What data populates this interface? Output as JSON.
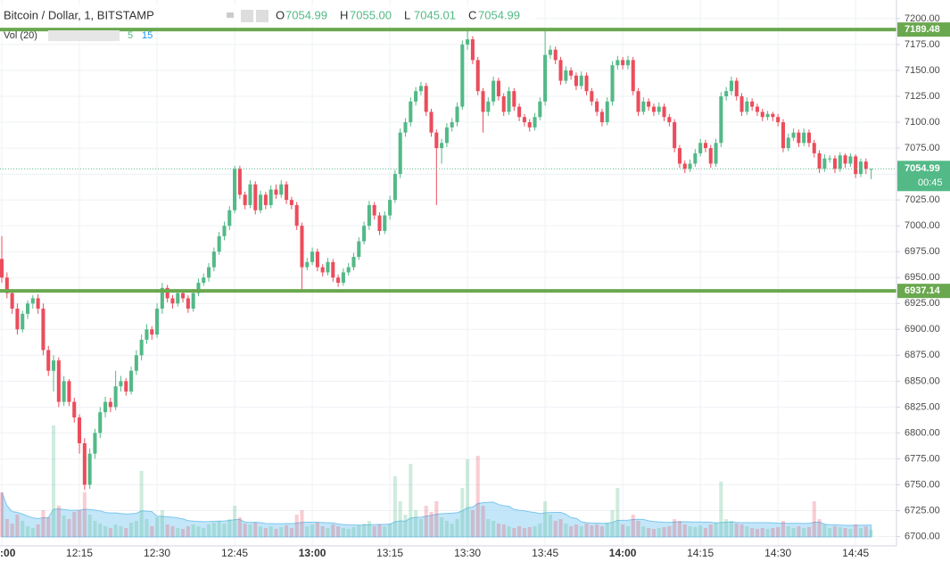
{
  "chart_data": {
    "type": "candlestick",
    "title": "Bitcoin / Dollar, 1, BITSTAMP",
    "ohlc_header": [
      {
        "label": "O",
        "value": "7054.99"
      },
      {
        "label": "H",
        "value": "7055.00"
      },
      {
        "label": "L",
        "value": "7045.01"
      },
      {
        "label": "C",
        "value": "7054.99"
      }
    ],
    "volume_title": "Vol (20)",
    "volume_settings": [
      "5",
      "15"
    ],
    "countdown": "00:45",
    "up_color": "#53b987",
    "down_color": "#eb4d5c",
    "level_color": "#6aa84f",
    "volume_ma_color": "#a9dcf6",
    "grid": true,
    "ylim": [
      6691,
      7218
    ],
    "xlim": [
      -0.35,
      172.9
    ],
    "yticks": [
      {
        "value": 6700,
        "label": "6700.00"
      },
      {
        "value": 6725,
        "label": "6725.00"
      },
      {
        "value": 6750,
        "label": "6750.00"
      },
      {
        "value": 6775,
        "label": "6775.00"
      },
      {
        "value": 6800,
        "label": "6800.00"
      },
      {
        "value": 6825,
        "label": "6825.00"
      },
      {
        "value": 6850,
        "label": "6850.00"
      },
      {
        "value": 6875,
        "label": "6875.00"
      },
      {
        "value": 6900,
        "label": "6900.00"
      },
      {
        "value": 6925,
        "label": "6925.00"
      },
      {
        "value": 6950,
        "label": "6950.00"
      },
      {
        "value": 6975,
        "label": "6975.00"
      },
      {
        "value": 7000,
        "label": "7000.00"
      },
      {
        "value": 7025,
        "label": "7025.00"
      },
      {
        "value": 7050,
        "label": "7050.00"
      },
      {
        "value": 7075,
        "label": "7075.00"
      },
      {
        "value": 7100,
        "label": "7100.00"
      },
      {
        "value": 7125,
        "label": "7125.00"
      },
      {
        "value": 7150,
        "label": "7150.00"
      },
      {
        "value": 7175,
        "label": "7175.00"
      },
      {
        "value": 7200,
        "label": "7200.00"
      }
    ],
    "xticks": [
      {
        "value": 0,
        "label": "12:00"
      },
      {
        "value": 15,
        "label": "12:15"
      },
      {
        "value": 30,
        "label": "12:30"
      },
      {
        "value": 45,
        "label": "12:45"
      },
      {
        "value": 60,
        "label": "13:00"
      },
      {
        "value": 75,
        "label": "13:15"
      },
      {
        "value": 90,
        "label": "13:30"
      },
      {
        "value": 105,
        "label": "13:45"
      },
      {
        "value": 120,
        "label": "14:00"
      },
      {
        "value": 135,
        "label": "14:15"
      },
      {
        "value": 150,
        "label": "14:30"
      },
      {
        "value": 165,
        "label": "14:45"
      }
    ],
    "levels": [
      7189.48,
      6937.14
    ],
    "candles": [
      [
        6968,
        6990,
        6945,
        6950,
        50
      ],
      [
        6950,
        6955,
        6930,
        6935,
        20
      ],
      [
        6935,
        6938,
        6915,
        6920,
        15
      ],
      [
        6920,
        6925,
        6895,
        6900,
        25
      ],
      [
        6900,
        6918,
        6897,
        6915,
        18
      ],
      [
        6915,
        6928,
        6910,
        6925,
        12
      ],
      [
        6925,
        6933,
        6920,
        6930,
        10
      ],
      [
        6930,
        6934,
        6915,
        6920,
        14
      ],
      [
        6920,
        6925,
        6875,
        6880,
        30
      ],
      [
        6880,
        6884,
        6855,
        6860,
        22
      ],
      [
        6860,
        6875,
        6840,
        6870,
        125
      ],
      [
        6870,
        6873,
        6825,
        6830,
        35
      ],
      [
        6830,
        6855,
        6826,
        6850,
        24
      ],
      [
        6850,
        6852,
        6826,
        6830,
        20
      ],
      [
        6830,
        6834,
        6810,
        6815,
        28
      ],
      [
        6815,
        6818,
        6780,
        6790,
        30
      ],
      [
        6790,
        6795,
        6745,
        6750,
        50
      ],
      [
        6750,
        6785,
        6746,
        6780,
        25
      ],
      [
        6780,
        6804,
        6775,
        6800,
        18
      ],
      [
        6800,
        6825,
        6795,
        6820,
        15
      ],
      [
        6820,
        6835,
        6815,
        6830,
        12
      ],
      [
        6830,
        6834,
        6820,
        6825,
        10
      ],
      [
        6825,
        6860,
        6822,
        6845,
        14
      ],
      [
        6845,
        6855,
        6840,
        6850,
        12
      ],
      [
        6850,
        6853,
        6836,
        6840,
        10
      ],
      [
        6840,
        6864,
        6837,
        6860,
        16
      ],
      [
        6860,
        6880,
        6856,
        6875,
        18
      ],
      [
        6875,
        6895,
        6870,
        6890,
        74
      ],
      [
        6890,
        6905,
        6886,
        6900,
        20
      ],
      [
        6900,
        6903,
        6890,
        6895,
        12
      ],
      [
        6895,
        6925,
        6892,
        6920,
        22
      ],
      [
        6920,
        6945,
        6915,
        6940,
        30
      ],
      [
        6940,
        6943,
        6926,
        6930,
        14
      ],
      [
        6930,
        6933,
        6920,
        6925,
        12
      ],
      [
        6925,
        6939,
        6922,
        6935,
        10
      ],
      [
        6935,
        6938,
        6926,
        6930,
        9
      ],
      [
        6930,
        6933,
        6916,
        6920,
        12
      ],
      [
        6920,
        6939,
        6917,
        6935,
        14
      ],
      [
        6935,
        6949,
        6932,
        6945,
        12
      ],
      [
        6945,
        6954,
        6942,
        6950,
        10
      ],
      [
        6950,
        6964,
        6946,
        6960,
        14
      ],
      [
        6960,
        6979,
        6956,
        6975,
        16
      ],
      [
        6975,
        6994,
        6972,
        6990,
        18
      ],
      [
        6990,
        7004,
        6986,
        7000,
        15
      ],
      [
        7000,
        7019,
        6996,
        7015,
        20
      ],
      [
        7015,
        7058,
        7012,
        7055,
        35
      ],
      [
        7055,
        7058,
        7026,
        7030,
        22
      ],
      [
        7030,
        7033,
        7016,
        7020,
        15
      ],
      [
        7020,
        7044,
        7017,
        7040,
        14
      ],
      [
        7040,
        7043,
        7011,
        7015,
        16
      ],
      [
        7015,
        7034,
        7012,
        7030,
        12
      ],
      [
        7030,
        7033,
        7016,
        7020,
        10
      ],
      [
        7020,
        7039,
        7017,
        7035,
        12
      ],
      [
        7035,
        7040,
        7026,
        7030,
        9
      ],
      [
        7030,
        7044,
        7027,
        7040,
        11
      ],
      [
        7040,
        7043,
        7021,
        7025,
        13
      ],
      [
        7025,
        7028,
        7016,
        7020,
        10
      ],
      [
        7020,
        7023,
        6996,
        7000,
        25
      ],
      [
        7000,
        7003,
        6938,
        6960,
        30
      ],
      [
        6960,
        6969,
        6957,
        6965,
        12
      ],
      [
        6965,
        6979,
        6962,
        6975,
        14
      ],
      [
        6975,
        6978,
        6956,
        6960,
        16
      ],
      [
        6960,
        6963,
        6951,
        6955,
        12
      ],
      [
        6955,
        6969,
        6952,
        6965,
        10
      ],
      [
        6965,
        6968,
        6946,
        6950,
        14
      ],
      [
        6950,
        6953,
        6941,
        6945,
        12
      ],
      [
        6945,
        6959,
        6942,
        6955,
        10
      ],
      [
        6955,
        6964,
        6952,
        6960,
        9
      ],
      [
        6960,
        6974,
        6957,
        6970,
        11
      ],
      [
        6970,
        6989,
        6967,
        6985,
        13
      ],
      [
        6985,
        7004,
        6982,
        7000,
        15
      ],
      [
        7000,
        7024,
        6996,
        7020,
        18
      ],
      [
        7020,
        7023,
        7006,
        7010,
        12
      ],
      [
        7010,
        7013,
        6991,
        6995,
        14
      ],
      [
        6995,
        7014,
        6992,
        7010,
        12
      ],
      [
        7010,
        7029,
        7006,
        7025,
        15
      ],
      [
        7025,
        7054,
        7022,
        7050,
        68
      ],
      [
        7050,
        7094,
        7046,
        7090,
        40
      ],
      [
        7090,
        7104,
        7086,
        7100,
        25
      ],
      [
        7100,
        7124,
        7096,
        7120,
        82
      ],
      [
        7120,
        7134,
        7116,
        7130,
        30
      ],
      [
        7130,
        7139,
        7126,
        7135,
        20
      ],
      [
        7135,
        7138,
        7106,
        7110,
        35
      ],
      [
        7110,
        7113,
        7086,
        7090,
        28
      ],
      [
        7090,
        7093,
        7020,
        7075,
        40
      ],
      [
        7075,
        7084,
        7060,
        7080,
        22
      ],
      [
        7080,
        7099,
        7076,
        7095,
        18
      ],
      [
        7095,
        7104,
        7091,
        7100,
        15
      ],
      [
        7100,
        7119,
        7096,
        7115,
        20
      ],
      [
        7115,
        7179,
        7112,
        7175,
        55
      ],
      [
        7175,
        7190,
        7170,
        7180,
        87
      ],
      [
        7180,
        7183,
        7156,
        7160,
        30
      ],
      [
        7160,
        7163,
        7126,
        7130,
        91
      ],
      [
        7130,
        7133,
        7090,
        7110,
        35
      ],
      [
        7110,
        7124,
        7106,
        7120,
        20
      ],
      [
        7120,
        7144,
        7116,
        7140,
        18
      ],
      [
        7140,
        7143,
        7121,
        7125,
        15
      ],
      [
        7125,
        7128,
        7106,
        7110,
        14
      ],
      [
        7110,
        7134,
        7107,
        7130,
        12
      ],
      [
        7130,
        7133,
        7111,
        7115,
        10
      ],
      [
        7115,
        7118,
        7101,
        7105,
        12
      ],
      [
        7105,
        7108,
        7096,
        7100,
        10
      ],
      [
        7100,
        7103,
        7091,
        7095,
        11
      ],
      [
        7095,
        7109,
        7092,
        7105,
        12
      ],
      [
        7105,
        7124,
        7102,
        7120,
        15
      ],
      [
        7120,
        7190,
        7116,
        7165,
        40
      ],
      [
        7165,
        7174,
        7161,
        7170,
        25
      ],
      [
        7170,
        7173,
        7156,
        7160,
        18
      ],
      [
        7160,
        7163,
        7136,
        7140,
        20
      ],
      [
        7140,
        7154,
        7137,
        7150,
        15
      ],
      [
        7150,
        7153,
        7141,
        7145,
        12
      ],
      [
        7145,
        7148,
        7131,
        7135,
        14
      ],
      [
        7135,
        7149,
        7132,
        7145,
        12
      ],
      [
        7145,
        7148,
        7126,
        7130,
        15
      ],
      [
        7130,
        7133,
        7116,
        7120,
        13
      ],
      [
        7120,
        7123,
        7106,
        7110,
        14
      ],
      [
        7110,
        7113,
        7096,
        7100,
        12
      ],
      [
        7100,
        7124,
        7097,
        7120,
        16
      ],
      [
        7120,
        7159,
        7116,
        7155,
        30
      ],
      [
        7155,
        7164,
        7151,
        7160,
        55
      ],
      [
        7160,
        7163,
        7151,
        7155,
        14
      ],
      [
        7155,
        7164,
        7151,
        7160,
        12
      ],
      [
        7160,
        7163,
        7126,
        7130,
        25
      ],
      [
        7130,
        7133,
        7106,
        7110,
        18
      ],
      [
        7110,
        7124,
        7107,
        7120,
        12
      ],
      [
        7120,
        7123,
        7111,
        7115,
        10
      ],
      [
        7115,
        7118,
        7106,
        7110,
        9
      ],
      [
        7110,
        7119,
        7107,
        7115,
        10
      ],
      [
        7115,
        7118,
        7101,
        7105,
        11
      ],
      [
        7105,
        7108,
        7096,
        7100,
        12
      ],
      [
        7100,
        7103,
        7071,
        7075,
        20
      ],
      [
        7075,
        7078,
        7056,
        7060,
        18
      ],
      [
        7060,
        7063,
        7051,
        7055,
        14
      ],
      [
        7055,
        7064,
        7052,
        7060,
        12
      ],
      [
        7060,
        7074,
        7057,
        7070,
        11
      ],
      [
        7070,
        7084,
        7067,
        7080,
        13
      ],
      [
        7080,
        7083,
        7071,
        7075,
        10
      ],
      [
        7075,
        7078,
        7056,
        7060,
        14
      ],
      [
        7060,
        7084,
        7057,
        7080,
        16
      ],
      [
        7080,
        7129,
        7076,
        7125,
        62
      ],
      [
        7125,
        7134,
        7121,
        7130,
        20
      ],
      [
        7130,
        7144,
        7126,
        7140,
        18
      ],
      [
        7140,
        7143,
        7121,
        7125,
        15
      ],
      [
        7125,
        7128,
        7106,
        7110,
        14
      ],
      [
        7110,
        7124,
        7107,
        7120,
        12
      ],
      [
        7120,
        7123,
        7111,
        7115,
        10
      ],
      [
        7115,
        7118,
        7106,
        7110,
        9
      ],
      [
        7110,
        7113,
        7101,
        7105,
        10
      ],
      [
        7105,
        7111,
        7102,
        7108,
        9
      ],
      [
        7108,
        7110,
        7101,
        7105,
        10
      ],
      [
        7105,
        7108,
        7096,
        7100,
        11
      ],
      [
        7100,
        7103,
        7071,
        7075,
        18
      ],
      [
        7075,
        7089,
        7072,
        7085,
        12
      ],
      [
        7085,
        7094,
        7082,
        7090,
        10
      ],
      [
        7090,
        7093,
        7076,
        7080,
        12
      ],
      [
        7080,
        7094,
        7077,
        7090,
        10
      ],
      [
        7090,
        7093,
        7076,
        7080,
        11
      ],
      [
        7080,
        7083,
        7066,
        7070,
        40
      ],
      [
        7070,
        7073,
        7051,
        7055,
        20
      ],
      [
        7055,
        7069,
        7052,
        7065,
        14
      ],
      [
        7065,
        7068,
        7061,
        7065,
        10
      ],
      [
        7065,
        7068,
        7051,
        7055,
        12
      ],
      [
        7055,
        7071,
        7052,
        7068,
        11
      ],
      [
        7068,
        7070,
        7056,
        7060,
        10
      ],
      [
        7060,
        7070,
        7057,
        7067,
        9
      ],
      [
        7067,
        7069,
        7046,
        7050,
        14
      ],
      [
        7050,
        7065,
        7047,
        7062,
        10
      ],
      [
        7062,
        7065,
        7050,
        7055,
        12
      ],
      [
        7054.99,
        7055.0,
        7045.01,
        7054.99,
        8
      ]
    ]
  }
}
